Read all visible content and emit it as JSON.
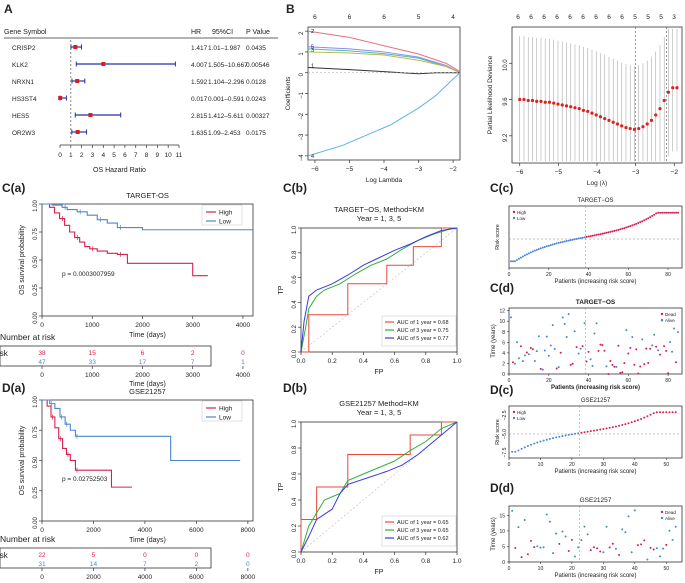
{
  "chart_data": [
    {
      "id": "A",
      "type": "forest",
      "panel_label": "A",
      "headers": {
        "gene": "Gene Symbol",
        "hr": "HR",
        "ci": "95%CI",
        "p": "P Value"
      },
      "rows": [
        {
          "gene": "CRISP2",
          "hr": 1.417,
          "lo": 1.01,
          "hi": 1.987,
          "hr_t": "1.417",
          "ci_t": "1.01–1.987",
          "p_t": "0.0435"
        },
        {
          "gene": "KLK2",
          "hr": 4.007,
          "lo": 1.505,
          "hi": 10.667,
          "hr_t": "4.007",
          "ci_t": "1.505–10.667",
          "p_t": "0.00546"
        },
        {
          "gene": "NRXN1",
          "hr": 1.592,
          "lo": 1.104,
          "hi": 2.296,
          "hr_t": "1.592",
          "ci_t": "1.104–2.296",
          "p_t": "0.0128"
        },
        {
          "gene": "HS3ST4",
          "hr": 0.017,
          "lo": 0.001,
          "hi": 0.591,
          "hr_t": "0.017",
          "ci_t": "0.001–0.591",
          "p_t": "0.0243"
        },
        {
          "gene": "HES5",
          "hr": 2.815,
          "lo": 1.412,
          "hi": 5.611,
          "hr_t": "2.815",
          "ci_t": "1.412–5.611",
          "p_t": "0.00327"
        },
        {
          "gene": "OR2W3",
          "hr": 1.635,
          "lo": 1.09,
          "hi": 2.453,
          "hr_t": "1.635",
          "ci_t": "1.09–2.453",
          "p_t": "0.0175"
        }
      ],
      "xticks": [
        0,
        1,
        2,
        3,
        4,
        5,
        6,
        7,
        8,
        9,
        10,
        11
      ],
      "xlim": [
        0,
        11
      ],
      "xlabel": "OS Hazard Ratio"
    },
    {
      "id": "B1",
      "type": "line",
      "panel_label": "B",
      "xlabel": "Log Lambda",
      "ylabel": "Coefficients",
      "xlim": [
        -6.2,
        -1.8
      ],
      "ylim": [
        -4.2,
        2.2
      ],
      "xticks": [
        -6,
        -5,
        -4,
        -3,
        -2
      ],
      "yticks": [
        -4,
        -3,
        -2,
        -1,
        0,
        1,
        2
      ],
      "top_ticks": [
        {
          "x": -6,
          "label": "6"
        },
        {
          "x": -5,
          "label": "6"
        },
        {
          "x": -4,
          "label": "6"
        },
        {
          "x": -3,
          "label": "5"
        },
        {
          "x": -2,
          "label": "4"
        }
      ],
      "series": [
        {
          "color": "#e8707f",
          "x": [
            -6.2,
            -5,
            -4,
            -3,
            -2.2,
            -1.8
          ],
          "y": [
            2.0,
            1.7,
            1.3,
            0.9,
            0.45,
            0.05
          ]
        },
        {
          "color": "#8c8cf0",
          "x": [
            -6.2,
            -5,
            -4,
            -3,
            -2.2,
            -1.8
          ],
          "y": [
            1.25,
            1.15,
            1.0,
            0.75,
            0.35,
            0.0
          ]
        },
        {
          "color": "#50b8b8",
          "x": [
            -6.2,
            -5,
            -4,
            -3,
            -2.2,
            -1.8
          ],
          "y": [
            1.15,
            1.05,
            0.92,
            0.7,
            0.3,
            0.0
          ]
        },
        {
          "color": "#b8b850",
          "x": [
            -6.2,
            -5,
            -4,
            -3,
            -2.2,
            -1.8
          ],
          "y": [
            1.0,
            0.95,
            0.85,
            0.6,
            0.3,
            0.0
          ]
        },
        {
          "color": "#333333",
          "x": [
            -6.2,
            -5,
            -4,
            -3,
            -2.5,
            -1.8
          ],
          "y": [
            0.25,
            0.15,
            0.05,
            -0.05,
            0.0,
            0.0
          ]
        },
        {
          "color": "#5ab4e6",
          "x": [
            -6.2,
            -5.2,
            -4.5,
            -3.8,
            -3,
            -2.5,
            -2,
            -1.8
          ],
          "y": [
            -4.0,
            -3.5,
            -3.0,
            -2.5,
            -1.7,
            -1.1,
            -0.3,
            0.0
          ]
        }
      ],
      "line_labels": [
        "2",
        "5",
        "3",
        "1",
        "4"
      ]
    },
    {
      "id": "B2",
      "type": "scatter",
      "xlabel": "Log (λ)",
      "ylabel": "Partial Likelihood Deviance",
      "xlim": [
        -6.2,
        -1.8
      ],
      "ylim": [
        8.9,
        10.4
      ],
      "xticks": [
        -6,
        -5,
        -4,
        -3,
        -2
      ],
      "yticks": [
        9.2,
        9.6,
        10.0
      ],
      "top_labels": [
        "6",
        "6",
        "6",
        "6",
        "6",
        "6",
        "6",
        "6",
        "6",
        "5",
        "5",
        "5",
        "3"
      ],
      "vlines": [
        -3.0,
        -2.2
      ],
      "x": [
        -6.0,
        -5.89,
        -5.78,
        -5.67,
        -5.56,
        -5.45,
        -5.34,
        -5.23,
        -5.12,
        -5.01,
        -4.9,
        -4.79,
        -4.68,
        -4.57,
        -4.46,
        -4.35,
        -4.24,
        -4.13,
        -4.02,
        -3.91,
        -3.8,
        -3.69,
        -3.58,
        -3.47,
        -3.36,
        -3.25,
        -3.14,
        -3.03,
        -2.92,
        -2.81,
        -2.7,
        -2.59,
        -2.48,
        -2.37,
        -2.26,
        -2.15,
        -2.04,
        -1.93
      ],
      "y": [
        9.6,
        9.6,
        9.59,
        9.59,
        9.58,
        9.58,
        9.57,
        9.57,
        9.56,
        9.55,
        9.54,
        9.53,
        9.52,
        9.51,
        9.5,
        9.48,
        9.47,
        9.45,
        9.43,
        9.41,
        9.39,
        9.37,
        9.35,
        9.33,
        9.31,
        9.29,
        9.28,
        9.27,
        9.28,
        9.3,
        9.33,
        9.37,
        9.43,
        9.5,
        9.59,
        9.68,
        9.73,
        9.73
      ],
      "err": 0.7
    },
    {
      "id": "Ca",
      "type": "km",
      "panel_label": "C(a)",
      "title": "TARGET-OS",
      "xlabel": "Time (days)",
      "ylabel": "OS survival probability",
      "xlim": [
        0,
        4200
      ],
      "ylim": [
        0,
        1
      ],
      "xticks": [
        0,
        1000,
        2000,
        3000,
        4000
      ],
      "yticks": [
        0,
        0.25,
        0.5,
        0.75,
        1
      ],
      "ytick_labels": [
        "0.00",
        "0.25",
        "0.50",
        "0.75",
        "1.00"
      ],
      "legend": [
        "High",
        "Low"
      ],
      "pvalue": "p = 0.0003007959",
      "series": [
        {
          "name": "High",
          "color": "#d6204e",
          "t": [
            0,
            150,
            250,
            350,
            450,
            550,
            650,
            750,
            850,
            950,
            1100,
            1300,
            1500,
            1700,
            2900,
            3000,
            3300
          ],
          "s": [
            1,
            0.97,
            0.92,
            0.87,
            0.81,
            0.75,
            0.7,
            0.66,
            0.62,
            0.6,
            0.58,
            0.56,
            0.55,
            0.47,
            0.47,
            0.36,
            0.36
          ]
        },
        {
          "name": "Low",
          "color": "#4a86d4",
          "t": [
            0,
            200,
            400,
            500,
            700,
            900,
            1100,
            1300,
            1500,
            2000,
            4200
          ],
          "s": [
            1,
            0.99,
            0.97,
            0.95,
            0.93,
            0.9,
            0.86,
            0.83,
            0.79,
            0.77,
            0.77
          ]
        }
      ],
      "risk_title": "Number at risk",
      "risk_ylabel": "Risk",
      "risk_rows": [
        {
          "name": "High",
          "color": "#d6204e",
          "values": [
            "38",
            "15",
            "6",
            "2",
            "0"
          ]
        },
        {
          "name": "Low",
          "color": "#4a86d4",
          "values": [
            "47",
            "33",
            "17",
            "7",
            "1"
          ]
        }
      ]
    },
    {
      "id": "Cb",
      "type": "roc",
      "panel_label": "C(b)",
      "title": "TARGET−OS, Method=KM",
      "subtitle": "Year = 1, 3, 5",
      "xlabel": "FP",
      "ylabel": "TP",
      "ticks": [
        0,
        0.2,
        0.4,
        0.6,
        0.8,
        1.0
      ],
      "tick_labels": [
        "0.0",
        "0.2",
        "0.4",
        "0.6",
        "0.8",
        "1.0"
      ],
      "curves": [
        {
          "label": "AUC of 1 year = 0.68",
          "color": "#e84c3d",
          "fp": [
            0,
            0.05,
            0.05,
            0.3,
            0.3,
            0.55,
            0.55,
            0.72,
            0.72,
            0.9,
            0.9,
            1
          ],
          "tp": [
            0,
            0,
            0.3,
            0.3,
            0.55,
            0.55,
            0.7,
            0.7,
            0.85,
            0.85,
            1,
            1
          ]
        },
        {
          "label": "AUC of 3 year = 0.75",
          "color": "#2fb03a",
          "fp": [
            0,
            0.03,
            0.05,
            0.1,
            0.15,
            0.25,
            0.35,
            0.45,
            0.55,
            0.65,
            0.75,
            0.85,
            0.95,
            1
          ],
          "tp": [
            0,
            0.2,
            0.35,
            0.45,
            0.5,
            0.55,
            0.63,
            0.7,
            0.75,
            0.83,
            0.9,
            0.95,
            0.99,
            1
          ]
        },
        {
          "label": "AUC of 5 year = 0.77",
          "color": "#3a3ae0",
          "fp": [
            0,
            0.02,
            0.05,
            0.1,
            0.2,
            0.3,
            0.4,
            0.5,
            0.6,
            0.7,
            0.8,
            0.9,
            1
          ],
          "tp": [
            0,
            0.25,
            0.45,
            0.5,
            0.55,
            0.62,
            0.7,
            0.76,
            0.82,
            0.87,
            0.93,
            0.98,
            1
          ]
        }
      ]
    },
    {
      "id": "Cc",
      "type": "scatter",
      "panel_label": "C(c)",
      "title": "TARGET−OS",
      "xlabel": "Patients (increasing risk score)",
      "ylabel": "Risk score",
      "legend": [
        "High",
        "Low"
      ],
      "xticks": [
        0,
        20,
        40,
        60,
        80
      ],
      "n": 85,
      "cut": 38
    },
    {
      "id": "Cd",
      "type": "scatter",
      "panel_label": "C(d)",
      "title": "TARGET−OS",
      "xlabel": "Patients (increasing risk score)",
      "ylabel": "Time (years)",
      "legend": [
        "Dead",
        "Alive"
      ],
      "xticks": [
        0,
        20,
        40,
        60,
        80
      ],
      "yticks": [
        0,
        2,
        4,
        6,
        8,
        10,
        12
      ],
      "n": 85,
      "cut": 38
    },
    {
      "id": "Da",
      "type": "km",
      "panel_label": "D(a)",
      "title": "GSE21257",
      "xlabel": "Time (days)",
      "ylabel": "OS survival probability",
      "xlim": [
        0,
        8200
      ],
      "ylim": [
        0,
        1
      ],
      "xticks": [
        0,
        2000,
        4000,
        6000,
        8000
      ],
      "yticks": [
        0,
        0.25,
        0.5,
        0.75,
        1
      ],
      "ytick_labels": [
        "0.00",
        "0.25",
        "0.50",
        "0.75",
        "1.00"
      ],
      "legend": [
        "High",
        "Low"
      ],
      "pvalue": "p = 0.02752503",
      "series": [
        {
          "name": "High",
          "color": "#d6204e",
          "t": [
            0,
            200,
            350,
            500,
            650,
            800,
            950,
            1100,
            1300,
            1700,
            2700,
            3500
          ],
          "s": [
            1,
            0.95,
            0.86,
            0.77,
            0.68,
            0.6,
            0.55,
            0.5,
            0.42,
            0.42,
            0.28,
            0.28
          ]
        },
        {
          "name": "Low",
          "color": "#4a86d4",
          "t": [
            0,
            300,
            500,
            700,
            900,
            1100,
            1300,
            5000,
            7700
          ],
          "s": [
            1,
            0.97,
            0.93,
            0.86,
            0.8,
            0.75,
            0.7,
            0.5,
            0.5
          ]
        }
      ],
      "risk_title": "Number at risk",
      "risk_ylabel": "Risk",
      "risk_rows": [
        {
          "name": "High",
          "color": "#d6204e",
          "values": [
            "22",
            "5",
            "0",
            "0",
            "0"
          ]
        },
        {
          "name": "Low",
          "color": "#4a86d4",
          "values": [
            "31",
            "14",
            "7",
            "2",
            "0"
          ]
        }
      ]
    },
    {
      "id": "Db",
      "type": "roc",
      "panel_label": "D(b)",
      "title": "GSE21257 Method=KM",
      "subtitle": "Year = 1, 3, 5",
      "xlabel": "FP",
      "ylabel": "TP",
      "ticks": [
        0,
        0.2,
        0.4,
        0.6,
        0.8,
        1.0
      ],
      "tick_labels": [
        "0.0",
        "0.2",
        "0.4",
        "0.6",
        "0.8",
        "1.0"
      ],
      "curves": [
        {
          "label": "AUC of 1 year = 0.65",
          "color": "#e84c3d",
          "fp": [
            0,
            0,
            0.1,
            0.1,
            0.3,
            0.3,
            0.5,
            0.5,
            0.7,
            0.7,
            0.9,
            0.9,
            1
          ],
          "tp": [
            0,
            0.25,
            0.25,
            0.5,
            0.5,
            0.75,
            0.75,
            0.75,
            0.75,
            0.9,
            0.9,
            1,
            1
          ]
        },
        {
          "label": "AUC of 3 year = 0.65",
          "color": "#2fb03a",
          "fp": [
            0,
            0.05,
            0.1,
            0.15,
            0.25,
            0.3,
            0.4,
            0.5,
            0.6,
            0.7,
            0.8,
            0.9,
            1
          ],
          "tp": [
            0,
            0.2,
            0.3,
            0.4,
            0.45,
            0.55,
            0.6,
            0.65,
            0.7,
            0.78,
            0.85,
            0.95,
            1
          ]
        },
        {
          "label": "AUC of 5 year = 0.62",
          "color": "#3a3ae0",
          "fp": [
            0,
            0.05,
            0.1,
            0.2,
            0.25,
            0.3,
            0.45,
            0.55,
            0.65,
            0.75,
            0.85,
            0.95,
            1
          ],
          "tp": [
            0,
            0.12,
            0.25,
            0.33,
            0.45,
            0.52,
            0.58,
            0.62,
            0.67,
            0.75,
            0.85,
            0.95,
            1
          ]
        }
      ]
    },
    {
      "id": "Dc",
      "type": "scatter",
      "panel_label": "D(c)",
      "title": "GSE21257",
      "xlabel": "Patients (increasing risk score)",
      "ylabel": "Risk score",
      "legend": [
        "High",
        "Low"
      ],
      "xticks": [
        0,
        10,
        20,
        30,
        40,
        50
      ],
      "yticks": [
        -7.5,
        -5.0,
        -2.5
      ],
      "n": 53,
      "cut": 22
    },
    {
      "id": "Dd",
      "type": "scatter",
      "panel_label": "D(d)",
      "title": "GSE21257",
      "xlabel": "Patients (increasing risk score)",
      "ylabel": "Time (years)",
      "legend": [
        "Dead",
        "Alive"
      ],
      "xticks": [
        0,
        10,
        20,
        30,
        40,
        50
      ],
      "yticks": [
        0,
        5,
        10,
        15
      ],
      "n": 53,
      "cut": 22
    }
  ]
}
